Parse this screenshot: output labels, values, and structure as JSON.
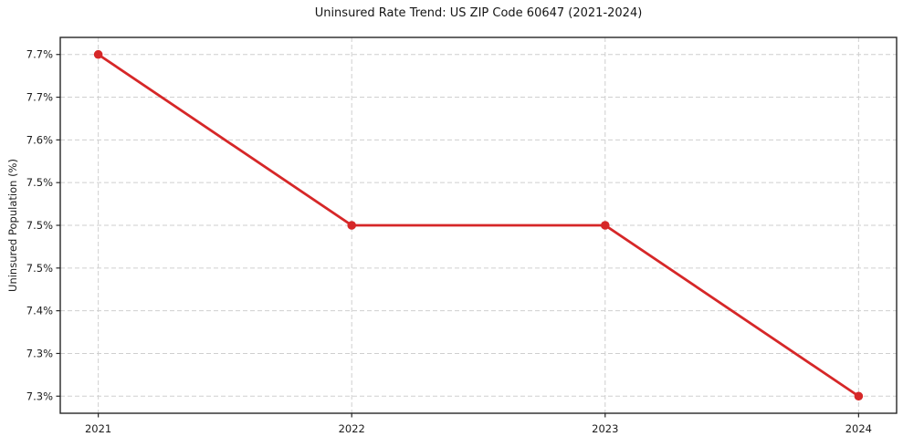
{
  "chart_data": {
    "type": "line",
    "title": "Uninsured Rate Trend: US ZIP Code 60647 (2021-2024)",
    "xlabel": "",
    "ylabel": "Uninsured Population (%)",
    "x": [
      2021,
      2022,
      2023,
      2024
    ],
    "values": [
      7.7,
      7.5,
      7.5,
      7.3
    ],
    "value_unit": "%",
    "xticks": {
      "values": [
        2021,
        2022,
        2023,
        2024
      ],
      "labels": [
        "2021",
        "2022",
        "2023",
        "2024"
      ]
    },
    "yticks": {
      "values": [
        7.3,
        7.35,
        7.4,
        7.45,
        7.5,
        7.55,
        7.6,
        7.65,
        7.7
      ],
      "labels": [
        "7.3%",
        "7.3%",
        "7.4%",
        "7.5%",
        "7.5%",
        "7.5%",
        "7.6%",
        "7.7%",
        "7.7%"
      ]
    },
    "xlim": [
      2020.85,
      2024.15
    ],
    "ylim": [
      7.28,
      7.72
    ],
    "grid": true,
    "grid_style": "dashed",
    "legend": false,
    "colors": {
      "line": "#d62728",
      "marker": "#d62728",
      "grid": "#cfcfcf",
      "spine": "#262626",
      "text": "#1c1c1c"
    }
  }
}
